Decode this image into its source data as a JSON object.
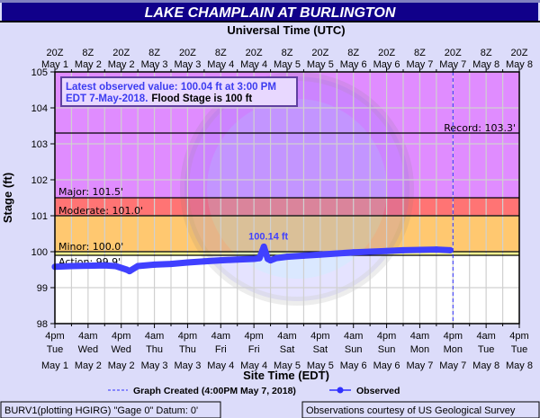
{
  "colors": {
    "background": "#dcdcfa",
    "title_bar": "#10008a",
    "record_band": "#e08cff",
    "major_band": "#ff7474",
    "moderate_band": "#ffc870",
    "action_band": "#ffff90",
    "observed": "#4040ff",
    "grid": "#d0d0d0"
  },
  "chart_data": {
    "type": "line",
    "title": "LAKE CHAMPLAIN AT BURLINGTON",
    "top_axis_title": "Universal Time (UTC)",
    "xlabel": "Site Time (EDT)",
    "ylabel": "Stage (ft)",
    "ylim": [
      98,
      105
    ],
    "xlim_hours": [
      0,
      168
    ],
    "yticks": [
      "98",
      "99",
      "100",
      "101",
      "102",
      "103",
      "104",
      "105"
    ],
    "top_ticks": [
      [
        "20Z",
        "May 1"
      ],
      [
        "8Z",
        "May 2"
      ],
      [
        "20Z",
        "May 2"
      ],
      [
        "8Z",
        "May 3"
      ],
      [
        "20Z",
        "May 3"
      ],
      [
        "8Z",
        "May 4"
      ],
      [
        "20Z",
        "May 4"
      ],
      [
        "8Z",
        "May 5"
      ],
      [
        "20Z",
        "May 5"
      ],
      [
        "8Z",
        "May 6"
      ],
      [
        "20Z",
        "May 6"
      ],
      [
        "8Z",
        "May 7"
      ],
      [
        "20Z",
        "May 7"
      ],
      [
        "8Z",
        "May 8"
      ],
      [
        "20Z",
        "May 8"
      ]
    ],
    "bottom_ticks": [
      [
        "4pm",
        "Tue",
        "May 1"
      ],
      [
        "4am",
        "Wed",
        "May 2"
      ],
      [
        "4pm",
        "Wed",
        "May 2"
      ],
      [
        "4am",
        "Thu",
        "May 3"
      ],
      [
        "4pm",
        "Thu",
        "May 3"
      ],
      [
        "4am",
        "Fri",
        "May 4"
      ],
      [
        "4pm",
        "Fri",
        "May 4"
      ],
      [
        "4am",
        "Sat",
        "May 5"
      ],
      [
        "4pm",
        "Sat",
        "May 5"
      ],
      [
        "4am",
        "Sun",
        "May 6"
      ],
      [
        "4pm",
        "Sun",
        "May 6"
      ],
      [
        "4am",
        "Mon",
        "May 7"
      ],
      [
        "4pm",
        "Mon",
        "May 7"
      ],
      [
        "4am",
        "Tue",
        "May 8"
      ],
      [
        "4pm",
        "Tue",
        "May 8"
      ]
    ],
    "flood_levels": {
      "record": {
        "label": "Record: 103.3'",
        "value": 103.3
      },
      "major": {
        "label": "Major: 101.5'",
        "value": 101.5
      },
      "moderate": {
        "label": "Moderate: 101.0'",
        "value": 101.0
      },
      "minor": {
        "label": "Minor: 100.0'",
        "value": 100.0
      },
      "action": {
        "label": "Action: 99.9'",
        "value": 99.9
      }
    },
    "series": [
      {
        "name": "Observed",
        "x_hours": [
          0,
          6,
          12,
          18,
          22,
          26,
          27,
          30,
          36,
          42,
          48,
          54,
          60,
          66,
          72,
          74,
          75.6,
          77,
          78,
          80,
          84,
          90,
          96,
          102,
          108,
          114,
          120,
          126,
          132,
          138,
          143
        ],
        "values": [
          99.58,
          99.6,
          99.61,
          99.62,
          99.6,
          99.5,
          99.46,
          99.6,
          99.64,
          99.66,
          99.7,
          99.73,
          99.76,
          99.78,
          99.8,
          99.82,
          100.14,
          99.8,
          99.76,
          99.82,
          99.86,
          99.89,
          99.92,
          99.95,
          99.98,
          100.0,
          100.02,
          100.04,
          100.05,
          100.06,
          100.04
        ]
      }
    ],
    "peak_annotation": {
      "label": "100.14 ft",
      "x_hours": 75.6,
      "value": 100.14
    },
    "graph_created_hours": 144,
    "latest": {
      "line1": "Latest observed value: 100.04 ft at 3:00 PM",
      "line2": "EDT 7-May-2018.",
      "flood_stage": "Flood Stage is 100 ft"
    },
    "legend": {
      "graph_created": "Graph Created (4:00PM May 7, 2018)",
      "observed": "Observed"
    }
  },
  "footer": {
    "left": "BURV1(plotting HGIRG) \"Gage 0\" Datum: 0'",
    "right": "Observations courtesy of US Geological Survey"
  },
  "watermark": "NOAA"
}
